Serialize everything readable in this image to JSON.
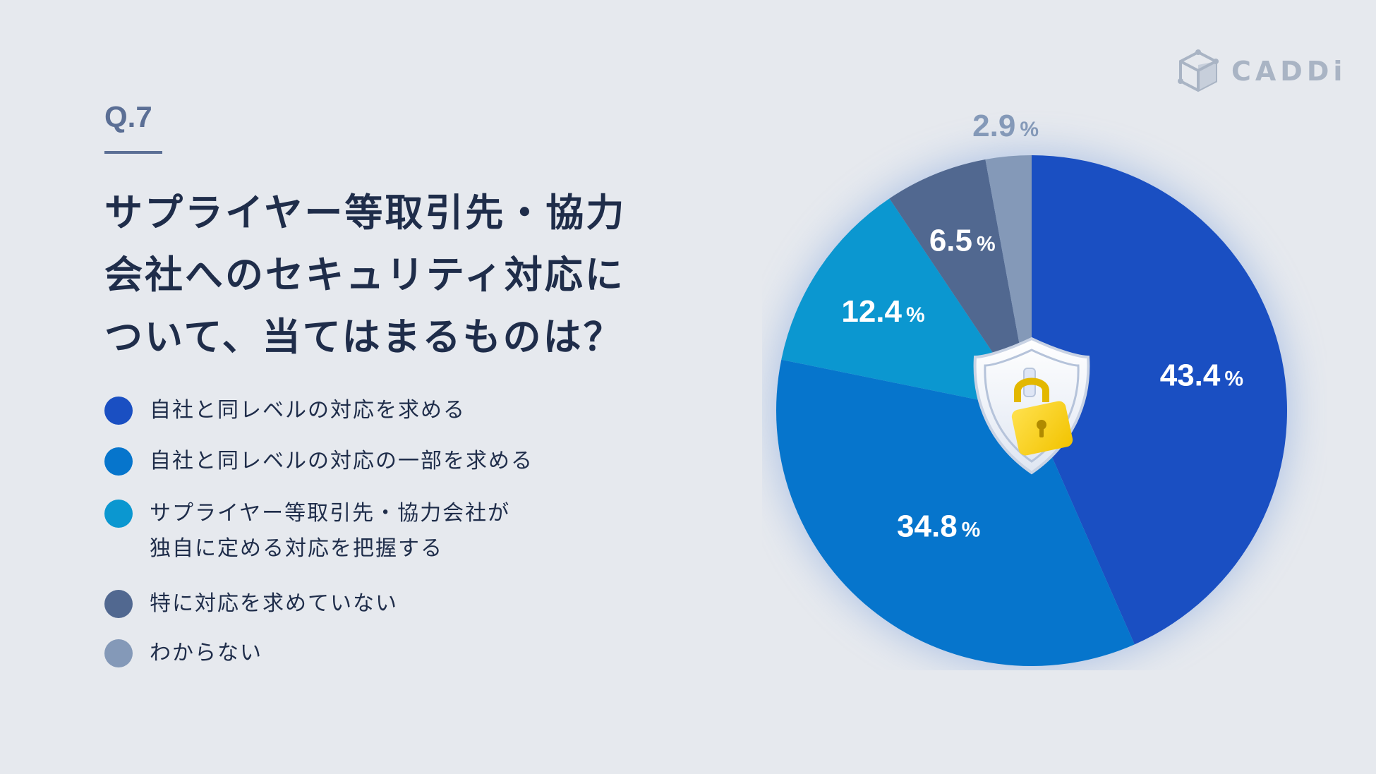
{
  "brand": {
    "logo_text": "CADDi",
    "logo_icon": "cube-icon"
  },
  "question": {
    "number": "Q.7",
    "title_lines": [
      "サプライヤー等取引先・協力",
      "会社へのセキュリティ対応に",
      "ついて、当てはまるものは？"
    ]
  },
  "center_icon": "shield-lock-icon",
  "colors": {
    "background": "#e6e9ee",
    "series": [
      "#1a4fc2",
      "#0675cc",
      "#0b97d0",
      "#516890",
      "#8499b8"
    ]
  },
  "chart_data": {
    "type": "pie",
    "start": "12 o'clock",
    "direction": "clockwise",
    "categories": [
      "自社と同レベルの対応を求める",
      "自社と同レベルの対応の一部を求める",
      "サプライヤー等取引先・協力会社が独自に定める対応を把握する",
      "特に対応を求めていない",
      "わからない"
    ],
    "legend_lines": [
      [
        "自社と同レベルの対応を求める"
      ],
      [
        "自社と同レベルの対応の一部を求める"
      ],
      [
        "サプライヤー等取引先・協力会社が",
        "独自に定める対応を把握する"
      ],
      [
        "特に対応を求めていない"
      ],
      [
        "わからない"
      ]
    ],
    "values": [
      43.4,
      34.8,
      12.4,
      6.5,
      2.9
    ],
    "value_labels": [
      "43.4",
      "34.8",
      "12.4",
      "6.5",
      "2.9"
    ],
    "unit": "%",
    "legend_position": "left"
  }
}
